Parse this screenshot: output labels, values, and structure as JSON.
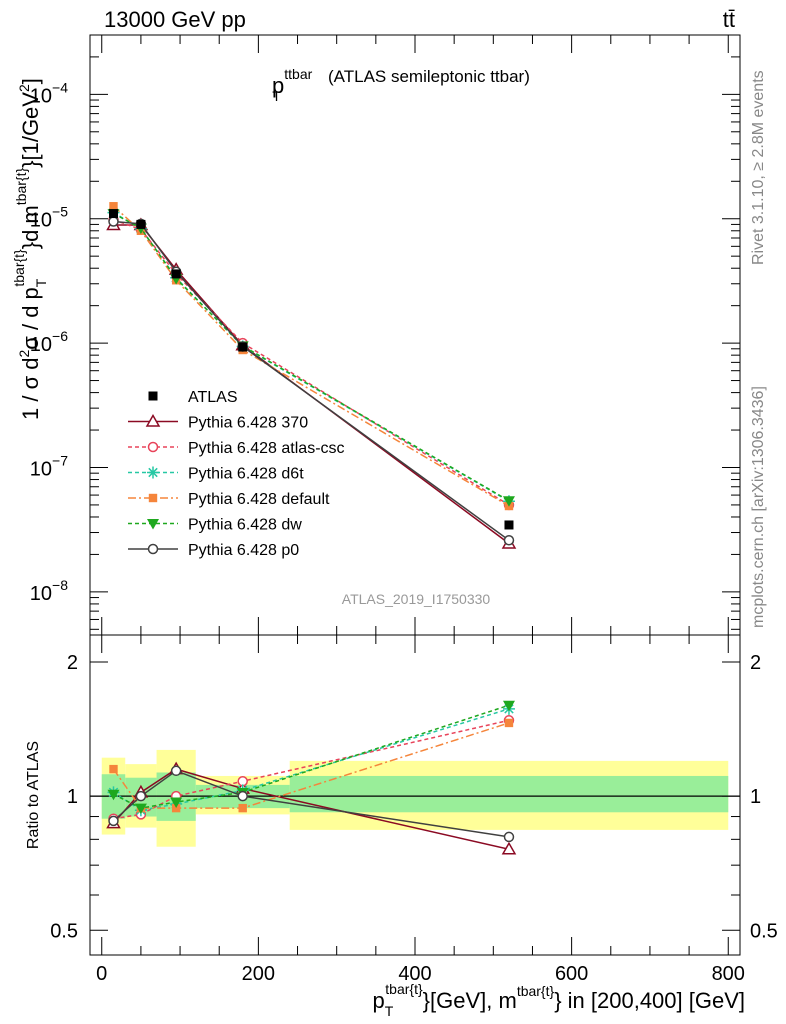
{
  "header": {
    "energy_label": "13000 GeV pp",
    "process_label": "tt̄"
  },
  "side_labels": {
    "rivet": "Rivet 3.1.10, ≥ 2.8M events",
    "source": "mcplots.cern.ch [arXiv:1306.3436]"
  },
  "chart_data": [
    {
      "type": "line",
      "panel": "main",
      "title_main": "p",
      "title_sup": "ttbar",
      "title_sub": "T",
      "title_rest": "(ATLAS semileptonic ttbar)",
      "watermark": "ATLAS_2019_I1750330",
      "yscale": "log",
      "ylim": [
        4.5e-09,
        0.0003
      ],
      "xlim": [
        -15,
        815
      ],
      "ytick_labels": [
        {
          "value": 1e-08,
          "base": "10",
          "exp": "−8"
        },
        {
          "value": 1e-07,
          "base": "10",
          "exp": "−7"
        },
        {
          "value": 1e-06,
          "base": "10",
          "exp": "−6"
        },
        {
          "value": 1e-05,
          "base": "10",
          "exp": "−5"
        },
        {
          "value": 0.0001,
          "base": "10",
          "exp": "−4"
        }
      ],
      "ylabel": "1 / σ d²σ / d p_T^{tbar{t}} d m^{tbar{t}} [1/GeV²]",
      "x": [
        15,
        50,
        95,
        180,
        520
      ],
      "reference": {
        "name": "ATLAS",
        "values": [
          1.1e-05,
          9e-06,
          3.6e-06,
          9.3e-07,
          3.45e-08
        ]
      },
      "series": [
        {
          "name": "Pythia 6.428 370",
          "color": "#8b0a23",
          "dash": "",
          "marker": "triangle-open",
          "values": [
            8.9e-06,
            8.9e-06,
            3.9e-06,
            9.6e-07,
            2.45e-08
          ]
        },
        {
          "name": "Pythia 6.428 atlas-csc",
          "color": "#e8435a",
          "dash": "4,3",
          "marker": "circle-open",
          "values": [
            9.8e-06,
            8.2e-06,
            3.6e-06,
            1e-06,
            5e-08
          ]
        },
        {
          "name": "Pythia 6.428 d6t",
          "color": "#26c8a4",
          "dash": "4,3",
          "marker": "star",
          "values": [
            1.12e-05,
            8.3e-06,
            3.35e-06,
            9.4e-07,
            5.35e-08
          ]
        },
        {
          "name": "Pythia 6.428 default",
          "color": "#f5853b",
          "dash": "8,3,2,3",
          "marker": "square",
          "values": [
            1.26e-05,
            8e-06,
            3.2e-06,
            8.8e-07,
            4.9e-08
          ]
        },
        {
          "name": "Pythia 6.428 dw",
          "color": "#1ea81e",
          "dash": "4,3",
          "marker": "triangle-down",
          "values": [
            1.1e-05,
            8.4e-06,
            3.3e-06,
            9.5e-07,
            5.4e-08
          ]
        },
        {
          "name": "Pythia 6.428 p0",
          "color": "#404040",
          "dash": "",
          "marker": "circle-open",
          "values": [
            9.5e-06,
            9.1e-06,
            3.75e-06,
            9.4e-07,
            2.6e-08
          ]
        }
      ]
    },
    {
      "type": "line",
      "panel": "ratio",
      "ylabel": "Ratio to ATLAS",
      "ylim": [
        0.44,
        2.3
      ],
      "xlim": [
        -15,
        815
      ],
      "ytick_labels": [
        "0.5",
        "1",
        "2"
      ],
      "ytick_values": [
        0.5,
        1,
        2
      ],
      "xtick_labels": [
        "0",
        "200",
        "400",
        "600",
        "800"
      ],
      "xtick_values": [
        0,
        200,
        400,
        600,
        800
      ],
      "xlabel": "p_T^{tbar{t}} [GeV], m^{tbar{t}} in [200,400] [GeV]",
      "bins": [
        {
          "xlo": 0,
          "xhi": 30,
          "stat_lo": 0.89,
          "stat_hi": 1.12,
          "sys_lo": 0.82,
          "sys_hi": 1.22
        },
        {
          "xlo": 30,
          "xhi": 70,
          "stat_lo": 0.9,
          "stat_hi": 1.1,
          "sys_lo": 0.85,
          "sys_hi": 1.18
        },
        {
          "xlo": 70,
          "xhi": 120,
          "stat_lo": 0.88,
          "stat_hi": 1.13,
          "sys_lo": 0.77,
          "sys_hi": 1.27
        },
        {
          "xlo": 120,
          "xhi": 240,
          "stat_lo": 0.94,
          "stat_hi": 1.06,
          "sys_lo": 0.91,
          "sys_hi": 1.11
        },
        {
          "xlo": 240,
          "xhi": 800,
          "stat_lo": 0.92,
          "stat_hi": 1.11,
          "sys_lo": 0.84,
          "sys_hi": 1.2
        }
      ],
      "x": [
        15,
        50,
        95,
        180,
        520
      ],
      "series": [
        {
          "name": "Pythia 6.428 370",
          "values": [
            0.87,
            1.02,
            1.15,
            1.04,
            0.76
          ]
        },
        {
          "name": "Pythia 6.428 atlas-csc",
          "values": [
            0.89,
            0.91,
            1.0,
            1.08,
            1.48
          ]
        },
        {
          "name": "Pythia 6.428 d6t",
          "values": [
            1.02,
            0.93,
            0.96,
            1.03,
            1.57
          ]
        },
        {
          "name": "Pythia 6.428 default",
          "values": [
            1.15,
            0.94,
            0.94,
            0.94,
            1.46
          ]
        },
        {
          "name": "Pythia 6.428 dw",
          "values": [
            1.01,
            0.94,
            0.97,
            1.02,
            1.6
          ]
        },
        {
          "name": "Pythia 6.428 p0",
          "values": [
            0.88,
            1.0,
            1.14,
            1.0,
            0.81
          ]
        }
      ]
    }
  ]
}
